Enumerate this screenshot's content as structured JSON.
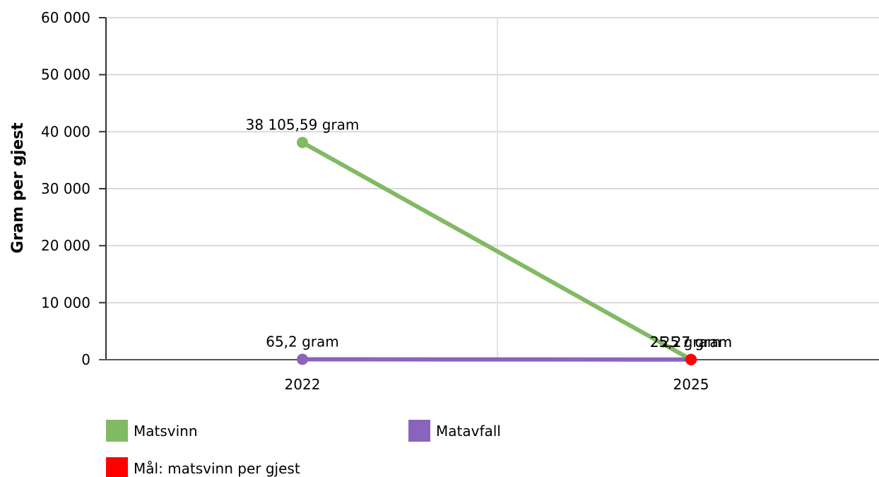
{
  "chart_data": {
    "type": "line",
    "title": "",
    "xlabel": "",
    "ylabel": "Gram per gjest",
    "categories": [
      "2022",
      "2025"
    ],
    "ylim": [
      0,
      60000
    ],
    "yticks": [
      0,
      10000,
      20000,
      30000,
      40000,
      50000,
      60000
    ],
    "ytick_labels": [
      "0",
      "10 000",
      "20 000",
      "30 000",
      "40 000",
      "50 000",
      "60 000"
    ],
    "grid": true,
    "legend_position": "bottom",
    "series": [
      {
        "name": "Matsvinn",
        "color": "#82b965",
        "values": [
          38105.59,
          25.27
        ],
        "labels": [
          "38 105,59 gram",
          "25,27 gram"
        ]
      },
      {
        "name": "Matavfall",
        "color": "#8a64bc",
        "values": [
          65.2,
          25.27
        ],
        "labels": [
          "65,2 gram",
          "25,27 gram"
        ]
      },
      {
        "name": "Mål: matsvinn per gjest",
        "color": "#ff0000",
        "values": [
          null,
          25
        ],
        "labels": [
          null,
          "25 gram"
        ]
      }
    ]
  }
}
